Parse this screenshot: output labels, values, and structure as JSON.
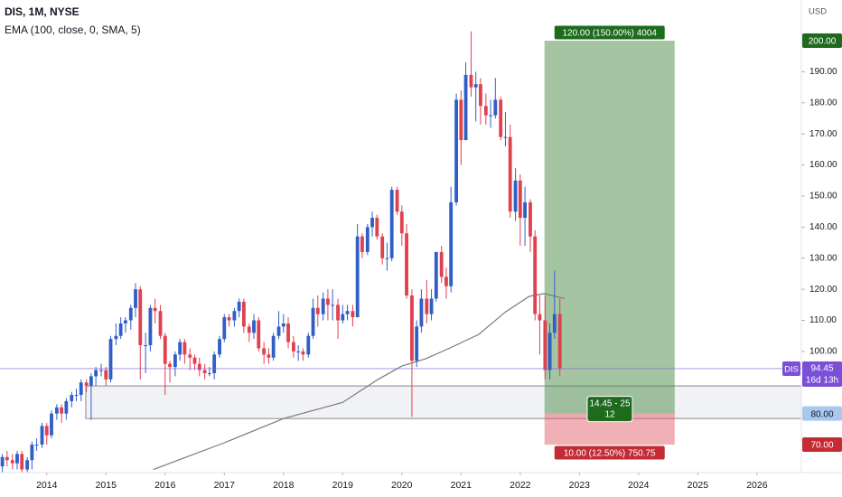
{
  "chart_data": {
    "type": "candlestick",
    "title": "DIS, 1M, NYSE",
    "currency": "USD",
    "symbol_tag": "DIS",
    "countdown": "16d 13h",
    "up_color": "#2f5fc6",
    "down_color": "#e0414f",
    "xlim": [
      2013.21,
      2026.75
    ],
    "xticks": [
      2014,
      2015,
      2016,
      2017,
      2018,
      2019,
      2020,
      2021,
      2022,
      2023,
      2024,
      2025,
      2026
    ],
    "ylim": [
      61,
      213.1
    ],
    "yticks": [
      {
        "value": 100,
        "label": "100.00"
      },
      {
        "value": 110,
        "label": "110.00"
      },
      {
        "value": 120,
        "label": "120.00"
      },
      {
        "value": 130,
        "label": "130.00"
      },
      {
        "value": 140,
        "label": "140.00"
      },
      {
        "value": 150,
        "label": "150.00"
      },
      {
        "value": 160,
        "label": "160.00"
      },
      {
        "value": 170,
        "label": "170.00"
      },
      {
        "value": 180,
        "label": "180.00"
      },
      {
        "value": 190,
        "label": "190.00"
      }
    ],
    "x": [
      2013.25,
      2013.33,
      2013.42,
      2013.5,
      2013.58,
      2013.67,
      2013.75,
      2013.83,
      2013.92,
      2014,
      2014.08,
      2014.17,
      2014.25,
      2014.33,
      2014.42,
      2014.5,
      2014.58,
      2014.67,
      2014.75,
      2014.83,
      2014.92,
      2015,
      2015.08,
      2015.17,
      2015.25,
      2015.33,
      2015.42,
      2015.5,
      2015.58,
      2015.67,
      2015.75,
      2015.83,
      2015.92,
      2016,
      2016.08,
      2016.17,
      2016.25,
      2016.33,
      2016.42,
      2016.5,
      2016.58,
      2016.67,
      2016.75,
      2016.83,
      2016.92,
      2017,
      2017.08,
      2017.17,
      2017.25,
      2017.33,
      2017.42,
      2017.5,
      2017.58,
      2017.67,
      2017.75,
      2017.83,
      2017.92,
      2018,
      2018.08,
      2018.17,
      2018.25,
      2018.33,
      2018.42,
      2018.5,
      2018.58,
      2018.67,
      2018.75,
      2018.83,
      2018.92,
      2019,
      2019.08,
      2019.17,
      2019.25,
      2019.33,
      2019.42,
      2019.5,
      2019.58,
      2019.67,
      2019.75,
      2019.83,
      2019.92,
      2020,
      2020.08,
      2020.17,
      2020.25,
      2020.33,
      2020.42,
      2020.5,
      2020.58,
      2020.67,
      2020.75,
      2020.83,
      2020.92,
      2021,
      2021.08,
      2021.17,
      2021.25,
      2021.33,
      2021.42,
      2021.5,
      2021.58,
      2021.67,
      2021.75,
      2021.83,
      2021.92,
      2022,
      2022.08,
      2022.17,
      2022.25,
      2022.33,
      2022.42,
      2022.5,
      2022.58,
      2022.67
    ],
    "open": [
      63,
      66,
      65,
      64,
      67,
      62,
      65,
      70,
      70,
      76,
      73,
      80,
      82,
      80,
      84,
      86,
      86,
      90,
      89,
      92,
      94,
      94,
      91,
      104,
      105,
      109,
      110,
      114,
      120,
      102,
      102,
      114,
      113,
      105,
      96,
      95,
      99,
      103,
      99,
      98,
      96,
      94,
      93,
      93,
      99,
      104,
      111,
      110,
      113,
      116,
      108,
      106,
      110,
      101,
      99,
      98,
      105,
      108,
      109,
      103,
      100,
      100,
      99,
      105,
      114,
      112,
      117,
      115,
      115,
      110,
      112,
      113,
      111,
      137,
      132,
      140,
      143,
      137,
      130,
      130,
      152,
      145,
      138,
      118,
      97,
      108,
      117,
      112,
      117,
      132,
      124,
      121,
      148,
      181,
      168,
      189,
      185,
      186,
      179,
      176,
      176,
      181,
      169,
      169,
      145,
      155,
      143,
      148,
      137,
      112,
      110,
      94,
      106,
      112
    ],
    "high": [
      67,
      68,
      67,
      68,
      68,
      66,
      71,
      72,
      77,
      77,
      81,
      83,
      83,
      85,
      87,
      88,
      91,
      91,
      93,
      95,
      96,
      95,
      105,
      109,
      111,
      111,
      115,
      122,
      121,
      106,
      115,
      117,
      115,
      106,
      97,
      100,
      104,
      104,
      101,
      99,
      98,
      96,
      95,
      100,
      105,
      112,
      112,
      114,
      117,
      117,
      109,
      112,
      111,
      103,
      101,
      106,
      113,
      112,
      111,
      105,
      102,
      101,
      106,
      117,
      118,
      119,
      120,
      120,
      117,
      115,
      115,
      115,
      141,
      138,
      141,
      145,
      144,
      138,
      135,
      153,
      153,
      147,
      141,
      120,
      110,
      120,
      123,
      120,
      132,
      134,
      127,
      153,
      183,
      184,
      193,
      203,
      190,
      188,
      183,
      181,
      188,
      182,
      177,
      173,
      159,
      157,
      153,
      149,
      139,
      118,
      118,
      109,
      126,
      117
    ],
    "low": [
      61,
      63,
      62,
      62,
      61,
      61,
      62,
      68,
      69,
      70,
      72,
      78,
      77,
      78,
      82,
      84,
      84,
      87,
      78,
      89,
      92,
      89,
      90,
      102,
      104,
      106,
      107,
      111,
      91,
      93,
      100,
      109,
      104,
      86,
      90,
      92,
      97,
      96,
      94,
      94,
      92,
      91,
      92,
      91,
      98,
      103,
      108,
      108,
      111,
      106,
      103,
      104,
      100,
      96,
      96,
      97,
      104,
      106,
      101,
      98,
      97,
      97,
      98,
      104,
      108,
      110,
      110,
      110,
      104,
      109,
      110,
      108,
      111,
      130,
      131,
      137,
      136,
      128,
      126,
      129,
      144,
      134,
      117,
      79,
      95,
      106,
      109,
      110,
      116,
      122,
      117,
      119,
      147,
      160,
      168,
      182,
      174,
      173,
      173,
      172,
      175,
      168,
      166,
      143,
      142,
      134,
      134,
      132,
      110,
      99,
      91,
      91,
      104,
      92
    ],
    "close": [
      66,
      65,
      64,
      67,
      62,
      65,
      70,
      70,
      76,
      73,
      80,
      82,
      80,
      84,
      86,
      86,
      90,
      89,
      92,
      94,
      94,
      91,
      104,
      105,
      109,
      110,
      114,
      120,
      102,
      102,
      114,
      113,
      105,
      96,
      95,
      99,
      103,
      99,
      98,
      96,
      94,
      93,
      93,
      99,
      104,
      111,
      110,
      113,
      116,
      108,
      106,
      110,
      101,
      99,
      98,
      105,
      108,
      109,
      103,
      100,
      100,
      99,
      105,
      114,
      112,
      117,
      115,
      115,
      110,
      112,
      113,
      111,
      137,
      132,
      140,
      143,
      137,
      130,
      130,
      152,
      145,
      138,
      118,
      97,
      108,
      117,
      112,
      117,
      132,
      124,
      121,
      148,
      181,
      168,
      189,
      185,
      186,
      179,
      176,
      176,
      181,
      169,
      169,
      145,
      155,
      143,
      148,
      137,
      112,
      110,
      94,
      106,
      112,
      94.45
    ],
    "ema": {
      "name": "EMA (100, close, 0, SMA, 5)",
      "color": "#7a7a7a",
      "x": [
        2015.8,
        2017.0,
        2018.0,
        2019.0,
        2019.6,
        2020.0,
        2020.4,
        2020.8,
        2021.3,
        2021.75,
        2022.15,
        2022.4,
        2022.75
      ],
      "values": [
        62,
        70.6,
        78.4,
        83.6,
        91,
        95.3,
        97.6,
        101,
        105.5,
        112.7,
        117.7,
        118.6,
        117
      ]
    },
    "zone": {
      "top": 88.9,
      "bottom": 78.4,
      "x_start": 2014.66
    },
    "position": {
      "x_start": 2022.41,
      "x_end": 2024.61,
      "target": {
        "value": 200,
        "label": "200.00"
      },
      "entry": {
        "value": 80,
        "label": "80.00"
      },
      "stop": {
        "value": 70,
        "label": "70.00"
      },
      "target_text": "120.00 (150.00%) 4004",
      "center_text": "14.45 - 25",
      "center_subtext": "12",
      "stop_text": "10.00 (12.50%) 750.75"
    }
  }
}
